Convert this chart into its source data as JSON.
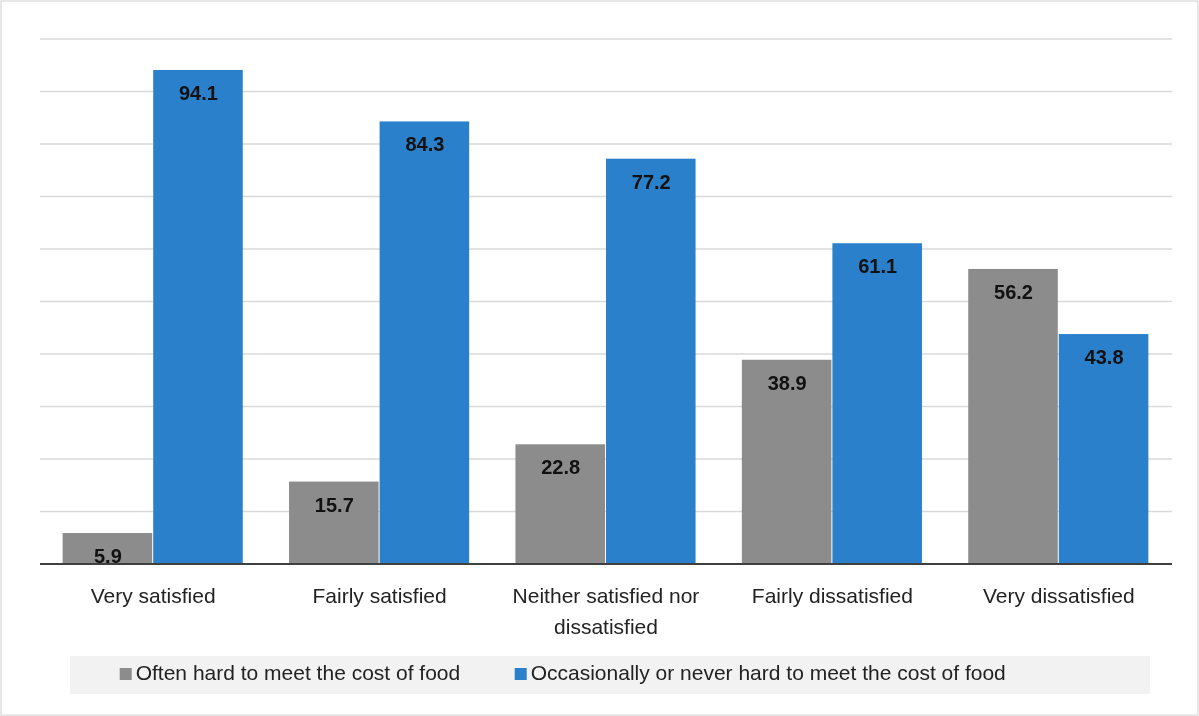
{
  "chart_data": {
    "type": "bar",
    "categories": [
      "Very satisfied",
      "Fairly satisfied",
      "Neither satisfied nor dissatisfied",
      "Fairly dissatisfied",
      "Very dissatisfied"
    ],
    "series": [
      {
        "name": "Often hard to meet the cost of food",
        "color": "#8c8c8c",
        "values": [
          5.9,
          15.7,
          22.8,
          38.9,
          56.2
        ]
      },
      {
        "name": "Occasionally or never hard to meet the cost of food",
        "color": "#2a80cb",
        "values": [
          94.1,
          84.3,
          77.2,
          61.1,
          43.8
        ]
      }
    ],
    "ylim": [
      0,
      100
    ],
    "yticks": [
      {
        "value": 0,
        "label": null
      },
      {
        "value": 10,
        "label": null
      },
      {
        "value": 20,
        "label": null
      },
      {
        "value": 30,
        "label": null
      },
      {
        "value": 40,
        "label": null
      },
      {
        "value": 50,
        "label": null
      },
      {
        "value": 60,
        "label": null
      },
      {
        "value": 70,
        "label": null
      },
      {
        "value": 80,
        "label": null
      },
      {
        "value": 90,
        "label": null
      },
      {
        "value": 100,
        "label": null
      }
    ],
    "tick_labels": "x",
    "grid": "y",
    "legend": "bottom",
    "data_labels": true
  }
}
